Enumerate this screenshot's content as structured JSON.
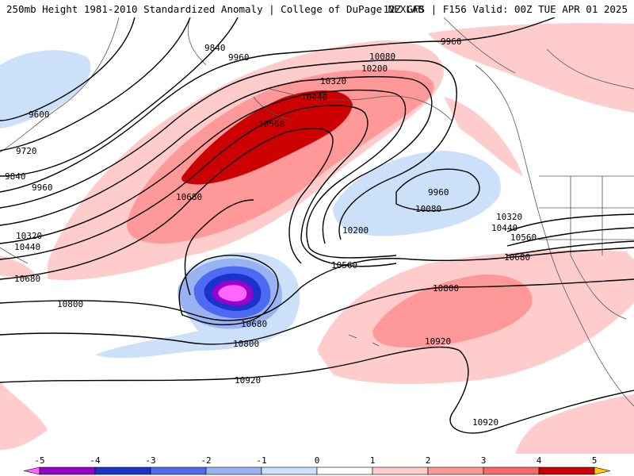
{
  "header": {
    "left": "250mb Height 1981-2010 Standardized Anomaly | College of DuPage NEXLAB",
    "right": "12Z GFS | F156 Valid: 00Z TUE APR 01 2025"
  },
  "contour_labels": [
    "9840",
    "9960",
    "10080",
    "10200",
    "10320",
    "10440",
    "10560",
    "10680",
    "9600",
    "9720",
    "9840",
    "9960",
    "10320",
    "10440",
    "10680",
    "10800",
    "9960",
    "10080",
    "10200",
    "10320",
    "10440",
    "10560",
    "10680",
    "10800",
    "10920",
    "10920",
    "10920",
    "10800",
    "10560",
    "10680"
  ],
  "legend": {
    "ticks": [
      "-5",
      "-4",
      "-3",
      "-2",
      "-1",
      "0",
      "1",
      "2",
      "3",
      "4",
      "5"
    ],
    "colors": [
      "#ff66ff",
      "#9900cc",
      "#1a33cc",
      "#4d6bf2",
      "#99b3f2",
      "#cce0fa",
      "#ffffff",
      "#ffcccc",
      "#ff9999",
      "#ff6666",
      "#cc0000",
      "#ff9900",
      "#ffcc00"
    ]
  }
}
